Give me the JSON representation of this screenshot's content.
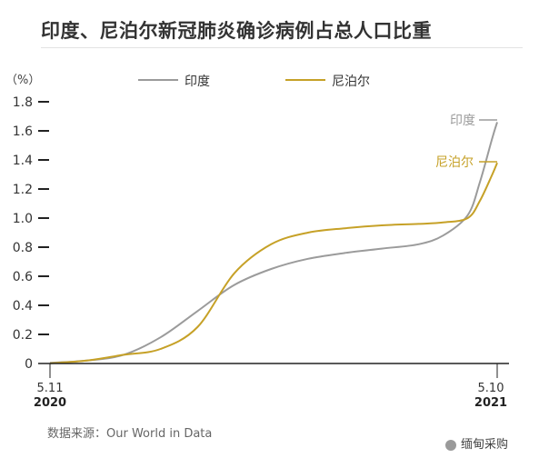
{
  "header": {
    "title": "印度、尼泊尔新冠肺炎确诊病例占总人口比重"
  },
  "source": {
    "label": "数据来源：Our World in Data"
  },
  "brand": {
    "name": "缅甸采购"
  },
  "chart_data": {
    "type": "line",
    "title": "印度、尼泊尔新冠肺炎确诊病例占总人口比重",
    "ylabel": "（%）",
    "ylim": [
      0,
      1.8
    ],
    "yticks": [
      0,
      0.2,
      0.4,
      0.6,
      0.8,
      1.0,
      1.2,
      1.4,
      1.6,
      1.8
    ],
    "ytick_labels": [
      "0",
      "0.2",
      "0.4",
      "0.6",
      "0.8",
      "1.0",
      "1.2",
      "1.4",
      "1.6",
      "1.8"
    ],
    "xlim": [
      "2020-05-11",
      "2021-05-10"
    ],
    "x_labels": [
      {
        "date": "2020-05-11",
        "day": "5.11",
        "year": "2020"
      },
      {
        "date": "2021-05-10",
        "day": "5.10",
        "year": "2021"
      }
    ],
    "grid": false,
    "legend": "top",
    "series": [
      {
        "name": "印度",
        "color": "#9b9b9b",
        "end_label": "印度",
        "x": [
          "2020-05-11",
          "2020-06-10",
          "2020-07-10",
          "2020-08-09",
          "2020-09-08",
          "2020-10-08",
          "2020-11-07",
          "2020-12-07",
          "2021-01-06",
          "2021-02-05",
          "2021-03-07",
          "2021-03-27",
          "2021-04-16",
          "2021-04-26",
          "2021-05-06",
          "2021-05-10"
        ],
        "values": [
          0.005,
          0.02,
          0.06,
          0.18,
          0.36,
          0.54,
          0.65,
          0.72,
          0.76,
          0.79,
          0.82,
          0.88,
          1.02,
          1.25,
          1.55,
          1.66
        ]
      },
      {
        "name": "尼泊尔",
        "color": "#c6a127",
        "end_label": "尼泊尔",
        "x": [
          "2020-05-11",
          "2020-06-10",
          "2020-07-10",
          "2020-08-09",
          "2020-09-08",
          "2020-10-08",
          "2020-11-07",
          "2020-12-07",
          "2021-01-06",
          "2021-02-05",
          "2021-03-07",
          "2021-03-27",
          "2021-04-16",
          "2021-04-26",
          "2021-05-06",
          "2021-05-10"
        ],
        "values": [
          0.001,
          0.02,
          0.06,
          0.1,
          0.25,
          0.62,
          0.82,
          0.9,
          0.93,
          0.95,
          0.96,
          0.97,
          1.0,
          1.12,
          1.3,
          1.38
        ]
      }
    ]
  }
}
